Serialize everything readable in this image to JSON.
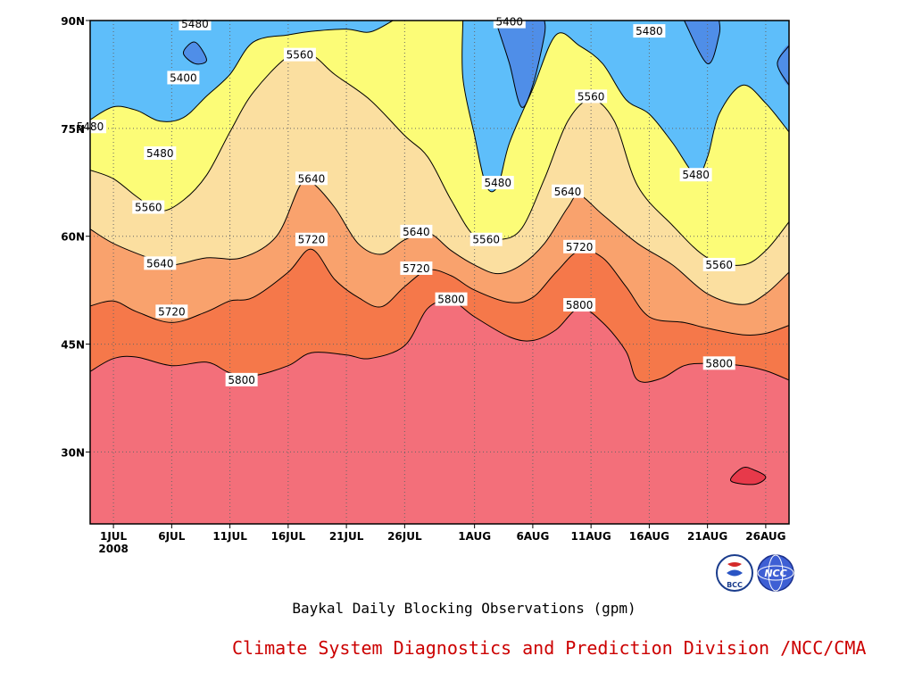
{
  "caption": "Baykal Daily Blocking Observations (gpm)",
  "footer": "Climate System Diagnostics and Prediction Division /NCC/CMA",
  "footer_color": "#cc0000",
  "logos": [
    {
      "name": "bcc-logo",
      "text": "BCC"
    },
    {
      "name": "ncc-logo",
      "text": "NCC"
    }
  ],
  "chart_data": {
    "type": "contour",
    "title": "Baykal Daily Blocking Observations (gpm)",
    "units": "gpm",
    "x_axis": {
      "type": "date",
      "range": [
        "2008-06-29",
        "2008-08-28"
      ],
      "ticks": [
        {
          "label": "1JUL",
          "date": "2008-07-01",
          "sublabel": "2008"
        },
        {
          "label": "6JUL",
          "date": "2008-07-06"
        },
        {
          "label": "11JUL",
          "date": "2008-07-11"
        },
        {
          "label": "16JUL",
          "date": "2008-07-16"
        },
        {
          "label": "21JUL",
          "date": "2008-07-21"
        },
        {
          "label": "26JUL",
          "date": "2008-07-26"
        },
        {
          "label": "1AUG",
          "date": "2008-08-01"
        },
        {
          "label": "6AUG",
          "date": "2008-08-06"
        },
        {
          "label": "11AUG",
          "date": "2008-08-11"
        },
        {
          "label": "16AUG",
          "date": "2008-08-16"
        },
        {
          "label": "21AUG",
          "date": "2008-08-21"
        },
        {
          "label": "26AUG",
          "date": "2008-08-26"
        }
      ]
    },
    "y_axis": {
      "range": [
        20,
        90
      ],
      "unit": "latitude N",
      "ticks": [
        {
          "label": "30N",
          "value": 30
        },
        {
          "label": "45N",
          "value": 45
        },
        {
          "label": "60N",
          "value": 60
        },
        {
          "label": "75N",
          "value": 75
        },
        {
          "label": "90N",
          "value": 90
        }
      ]
    },
    "grid": true,
    "grid_style": "dotted",
    "contour_levels": [
      5400,
      5480,
      5560,
      5640,
      5720,
      5800
    ],
    "fill_colors": {
      "below_5400": "#4f8ee8",
      "5400_5480": "#5ebefa",
      "5480_5560": "#fcfc77",
      "5560_5640": "#fbdfa0",
      "5640_5720": "#f9a26d",
      "5720_5800": "#f5784a",
      "above_5800": "#f36f7a",
      "small_max_region": "#e7394a"
    },
    "contours": [
      {
        "level": 5800,
        "points": [
          [
            "2008-06-29",
            41.2
          ],
          [
            "2008-07-01",
            43.0
          ],
          [
            "2008-07-03",
            43.2
          ],
          [
            "2008-07-06",
            42.0
          ],
          [
            "2008-07-09",
            42.5
          ],
          [
            "2008-07-11",
            41.0
          ],
          [
            "2008-07-13",
            40.6
          ],
          [
            "2008-07-16",
            42.0
          ],
          [
            "2008-07-18",
            43.8
          ],
          [
            "2008-07-21",
            43.5
          ],
          [
            "2008-07-23",
            43.0
          ],
          [
            "2008-07-26",
            44.8
          ],
          [
            "2008-07-28",
            50.0
          ],
          [
            "2008-07-30",
            51.0
          ],
          [
            "2008-08-01",
            48.8
          ],
          [
            "2008-08-04",
            46.0
          ],
          [
            "2008-08-06",
            45.5
          ],
          [
            "2008-08-08",
            47.0
          ],
          [
            "2008-08-10",
            50.0
          ],
          [
            "2008-08-12",
            48.0
          ],
          [
            "2008-08-14",
            44.0
          ],
          [
            "2008-08-15",
            40.0
          ],
          [
            "2008-08-17",
            40.2
          ],
          [
            "2008-08-19",
            42.0
          ],
          [
            "2008-08-21",
            42.3
          ],
          [
            "2008-08-24",
            42.0
          ],
          [
            "2008-08-26",
            41.3
          ],
          [
            "2008-08-28",
            40.0
          ]
        ]
      },
      {
        "level": 5720,
        "points": [
          [
            "2008-06-29",
            50.3
          ],
          [
            "2008-07-01",
            51.0
          ],
          [
            "2008-07-03",
            49.5
          ],
          [
            "2008-07-06",
            48.0
          ],
          [
            "2008-07-09",
            49.5
          ],
          [
            "2008-07-11",
            51.0
          ],
          [
            "2008-07-13",
            51.5
          ],
          [
            "2008-07-16",
            55.0
          ],
          [
            "2008-07-18",
            58.2
          ],
          [
            "2008-07-20",
            54.0
          ],
          [
            "2008-07-22",
            51.5
          ],
          [
            "2008-07-24",
            50.2
          ],
          [
            "2008-07-26",
            53.0
          ],
          [
            "2008-07-28",
            55.3
          ],
          [
            "2008-07-30",
            54.5
          ],
          [
            "2008-08-01",
            52.5
          ],
          [
            "2008-08-04",
            50.8
          ],
          [
            "2008-08-06",
            51.5
          ],
          [
            "2008-08-08",
            55.0
          ],
          [
            "2008-08-10",
            58.0
          ],
          [
            "2008-08-12",
            57.0
          ],
          [
            "2008-08-14",
            53.0
          ],
          [
            "2008-08-16",
            48.8
          ],
          [
            "2008-08-19",
            48.0
          ],
          [
            "2008-08-21",
            47.2
          ],
          [
            "2008-08-24",
            46.3
          ],
          [
            "2008-08-26",
            46.5
          ],
          [
            "2008-08-28",
            47.6
          ]
        ]
      },
      {
        "level": 5640,
        "points": [
          [
            "2008-06-29",
            61.0
          ],
          [
            "2008-07-01",
            59.0
          ],
          [
            "2008-07-04",
            57.0
          ],
          [
            "2008-07-06",
            56.0
          ],
          [
            "2008-07-09",
            57.0
          ],
          [
            "2008-07-12",
            57.0
          ],
          [
            "2008-07-15",
            60.0
          ],
          [
            "2008-07-17",
            67.0
          ],
          [
            "2008-07-18",
            67.5
          ],
          [
            "2008-07-20",
            64.0
          ],
          [
            "2008-07-22",
            59.0
          ],
          [
            "2008-07-24",
            57.5
          ],
          [
            "2008-07-26",
            59.5
          ],
          [
            "2008-07-28",
            60.5
          ],
          [
            "2008-07-30",
            58.0
          ],
          [
            "2008-08-01",
            56.0
          ],
          [
            "2008-08-03",
            54.8
          ],
          [
            "2008-08-05",
            56.0
          ],
          [
            "2008-08-07",
            59.0
          ],
          [
            "2008-08-09",
            64.0
          ],
          [
            "2008-08-10",
            65.7
          ],
          [
            "2008-08-12",
            63.0
          ],
          [
            "2008-08-15",
            59.0
          ],
          [
            "2008-08-18",
            56.0
          ],
          [
            "2008-08-21",
            52.0
          ],
          [
            "2008-08-24",
            50.5
          ],
          [
            "2008-08-26",
            52.0
          ],
          [
            "2008-08-28",
            55.0
          ]
        ]
      },
      {
        "level": 5560,
        "points": [
          [
            "2008-06-29",
            69.2
          ],
          [
            "2008-07-01",
            68.0
          ],
          [
            "2008-07-03",
            65.5
          ],
          [
            "2008-07-05",
            63.5
          ],
          [
            "2008-07-07",
            65.0
          ],
          [
            "2008-07-09",
            68.5
          ],
          [
            "2008-07-11",
            74.5
          ],
          [
            "2008-07-13",
            80.0
          ],
          [
            "2008-07-16",
            85.0
          ],
          [
            "2008-07-18",
            85.2
          ],
          [
            "2008-07-20",
            82.5
          ],
          [
            "2008-07-23",
            79.0
          ],
          [
            "2008-07-26",
            74.0
          ],
          [
            "2008-07-28",
            71.0
          ],
          [
            "2008-07-30",
            65.0
          ],
          [
            "2008-08-01",
            60.0
          ],
          [
            "2008-08-03",
            59.5
          ],
          [
            "2008-08-05",
            61.0
          ],
          [
            "2008-08-07",
            68.0
          ],
          [
            "2008-08-09",
            76.0
          ],
          [
            "2008-08-11",
            79.0
          ],
          [
            "2008-08-13",
            76.0
          ],
          [
            "2008-08-15",
            67.0
          ],
          [
            "2008-08-18",
            61.5
          ],
          [
            "2008-08-21",
            57.0
          ],
          [
            "2008-08-24",
            56.0
          ],
          [
            "2008-08-26",
            58.0
          ],
          [
            "2008-08-28",
            62.0
          ]
        ]
      },
      {
        "level": 5480,
        "points": [
          [
            "2008-06-29",
            76.2
          ],
          [
            "2008-07-01",
            78.0
          ],
          [
            "2008-07-03",
            77.5
          ],
          [
            "2008-07-05",
            76.0
          ],
          [
            "2008-07-07",
            76.5
          ],
          [
            "2008-07-09",
            79.5
          ],
          [
            "2008-07-11",
            82.5
          ],
          [
            "2008-07-13",
            87.0
          ],
          [
            "2008-07-16",
            88.0
          ],
          [
            "2008-07-18",
            88.5
          ],
          [
            "2008-07-21",
            88.8
          ],
          [
            "2008-07-23",
            88.4
          ],
          [
            "2008-07-25",
            90.0
          ]
        ]
      },
      {
        "level": 5480,
        "points": [
          [
            "2008-07-31",
            90.0
          ],
          [
            "2008-07-31",
            82.0
          ],
          [
            "2008-08-01",
            74.0
          ],
          [
            "2008-08-02",
            67.0
          ],
          [
            "2008-08-03",
            67.0
          ],
          [
            "2008-08-04",
            73.0
          ],
          [
            "2008-08-06",
            80.5
          ],
          [
            "2008-08-08",
            88.0
          ],
          [
            "2008-08-10",
            86.5
          ],
          [
            "2008-08-12",
            84.0
          ],
          [
            "2008-08-14",
            79.0
          ],
          [
            "2008-08-16",
            77.0
          ],
          [
            "2008-08-18",
            73.0
          ],
          [
            "2008-08-20",
            68.5
          ],
          [
            "2008-08-21",
            71.0
          ],
          [
            "2008-08-22",
            77.0
          ],
          [
            "2008-08-24",
            81.0
          ],
          [
            "2008-08-26",
            78.5
          ],
          [
            "2008-08-28",
            74.5
          ]
        ]
      },
      {
        "level": 5400,
        "points": [
          [
            "2008-08-03",
            89.0
          ],
          [
            "2008-08-04",
            84.0
          ],
          [
            "2008-08-05",
            78.0
          ],
          [
            "2008-08-06",
            81.0
          ],
          [
            "2008-08-07",
            88.0
          ],
          [
            "2008-08-07",
            90.0
          ]
        ]
      },
      {
        "level": 5400,
        "points": [
          [
            "2008-08-19",
            90.0
          ],
          [
            "2008-08-21",
            84.0
          ],
          [
            "2008-08-22",
            88.0
          ],
          [
            "2008-08-22",
            90.0
          ]
        ]
      },
      {
        "level": 5400,
        "points": [
          [
            "2008-07-07",
            85.5
          ],
          [
            "2008-07-08",
            84.0
          ],
          [
            "2008-07-09",
            84.5
          ],
          [
            "2008-07-08",
            87.0
          ]
        ],
        "closed": true
      },
      {
        "level": 5400,
        "points": [
          [
            "2008-08-28",
            86.5
          ],
          [
            "2008-08-27",
            84.0
          ],
          [
            "2008-08-28",
            81.0
          ]
        ]
      },
      {
        "level": 5880,
        "points": [
          [
            "2008-08-23",
            26.0
          ],
          [
            "2008-08-25",
            25.5
          ],
          [
            "2008-08-26",
            26.5
          ],
          [
            "2008-08-25",
            27.5
          ],
          [
            "2008-08-24",
            27.8
          ]
        ],
        "closed": true
      }
    ],
    "contour_labels": [
      {
        "text": "5480",
        "x": "2008-07-08",
        "y": 89.5
      },
      {
        "text": "5400",
        "x": "2008-07-07",
        "y": 82.0
      },
      {
        "text": "5480",
        "x": "2008-06-29",
        "y": 75.2
      },
      {
        "text": "5480",
        "x": "2008-07-05",
        "y": 71.5
      },
      {
        "text": "5560",
        "x": "2008-07-17",
        "y": 85.2
      },
      {
        "text": "5560",
        "x": "2008-07-04",
        "y": 64.0
      },
      {
        "text": "5640",
        "x": "2008-07-05",
        "y": 56.2
      },
      {
        "text": "5720",
        "x": "2008-07-06",
        "y": 49.5
      },
      {
        "text": "5800",
        "x": "2008-07-12",
        "y": 40.0
      },
      {
        "text": "5640",
        "x": "2008-07-18",
        "y": 68.0
      },
      {
        "text": "5720",
        "x": "2008-07-18",
        "y": 59.5
      },
      {
        "text": "5640",
        "x": "2008-07-27",
        "y": 60.6
      },
      {
        "text": "5720",
        "x": "2008-07-27",
        "y": 55.5
      },
      {
        "text": "5800",
        "x": "2008-07-30",
        "y": 51.2
      },
      {
        "text": "5400",
        "x": "2008-08-04",
        "y": 89.8
      },
      {
        "text": "5480",
        "x": "2008-08-03",
        "y": 67.4
      },
      {
        "text": "5560",
        "x": "2008-08-02",
        "y": 59.5
      },
      {
        "text": "5560",
        "x": "2008-08-11",
        "y": 79.4
      },
      {
        "text": "5640",
        "x": "2008-08-09",
        "y": 66.2
      },
      {
        "text": "5720",
        "x": "2008-08-10",
        "y": 58.5
      },
      {
        "text": "5800",
        "x": "2008-08-10",
        "y": 50.4
      },
      {
        "text": "5480",
        "x": "2008-08-16",
        "y": 88.5
      },
      {
        "text": "5480",
        "x": "2008-08-20",
        "y": 68.5
      },
      {
        "text": "5560",
        "x": "2008-08-22",
        "y": 56.0
      },
      {
        "text": "5800",
        "x": "2008-08-22",
        "y": 42.3
      }
    ]
  }
}
